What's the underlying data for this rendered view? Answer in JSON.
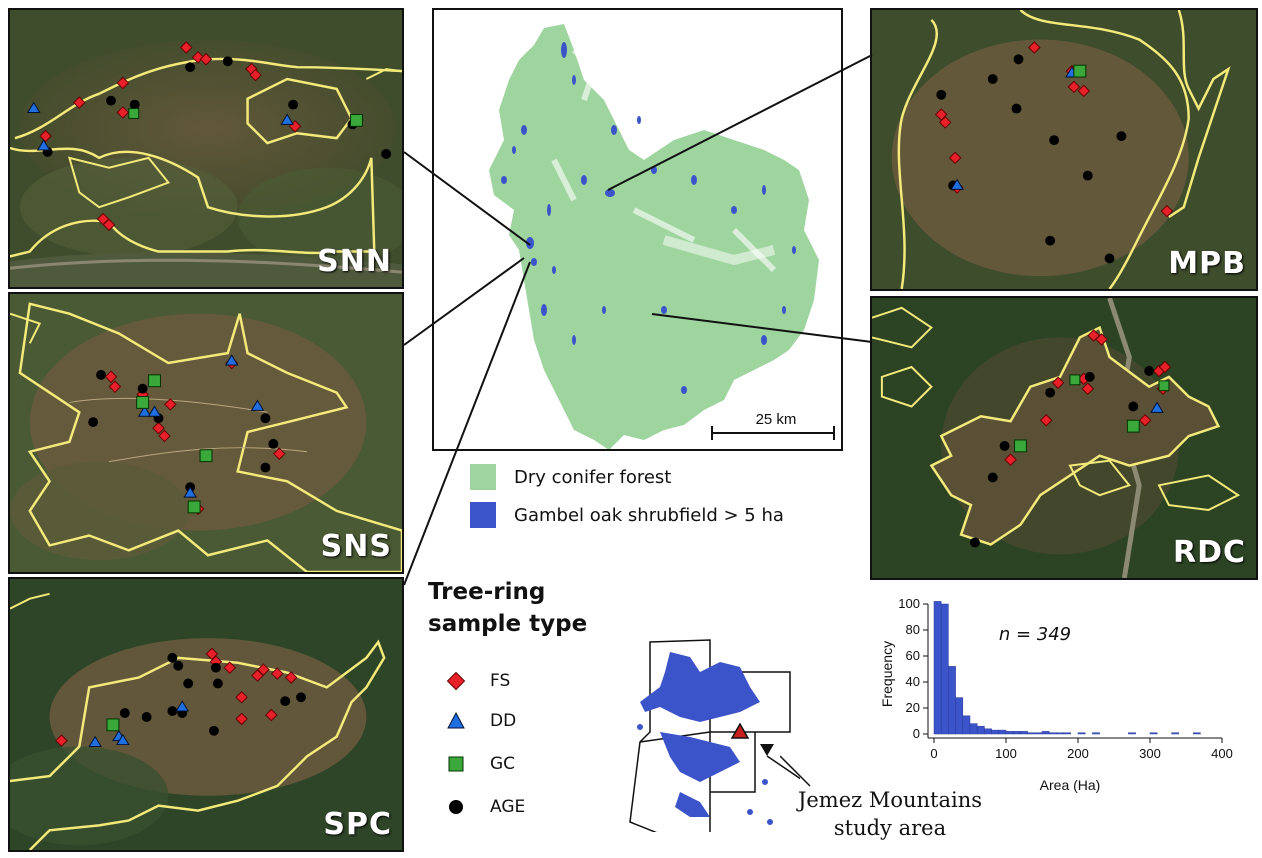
{
  "panels": {
    "snn": {
      "label": "SNN"
    },
    "sns": {
      "label": "SNS"
    },
    "spc": {
      "label": "SPC"
    },
    "mpb": {
      "label": "MPB"
    },
    "rdc": {
      "label": "RDC"
    }
  },
  "overview": {
    "scalebar_label": "25 km"
  },
  "legend": {
    "dry_conifer": {
      "label": "Dry conifer forest",
      "color": "#9ed49e"
    },
    "gambel_oak": {
      "label": "Gambel oak shrubfield > 5 ha",
      "color": "#3b54c9"
    }
  },
  "sample_legend": {
    "title_line1": "Tree-ring",
    "title_line2": "sample type",
    "items": [
      {
        "label": "FS",
        "shape": "diamond",
        "color": "#e8202a"
      },
      {
        "label": "DD",
        "shape": "triangle",
        "color": "#1f6fe0"
      },
      {
        "label": "GC",
        "shape": "square",
        "color": "#3aa83a"
      },
      {
        "label": "AGE",
        "shape": "circle",
        "color": "#000000"
      }
    ]
  },
  "locator": {
    "label_line1": "Jemez Mountains",
    "label_line2": "study area"
  },
  "chart_data": {
    "type": "bar",
    "annotation": "n = 349",
    "xlabel": "Area (Ha)",
    "ylabel": "Frequency",
    "xlim": [
      0,
      400
    ],
    "ylim": [
      0,
      100
    ],
    "xticks": [
      0,
      100,
      200,
      300,
      400
    ],
    "yticks": [
      0,
      20,
      40,
      60,
      80,
      100
    ],
    "bin_width": 10,
    "bin_starts": [
      0,
      10,
      20,
      30,
      40,
      50,
      60,
      70,
      80,
      90,
      100,
      110,
      120,
      130,
      140,
      150,
      160,
      170,
      180,
      190,
      200,
      210,
      220,
      230,
      240,
      250,
      260,
      270,
      280,
      290,
      300,
      310,
      320,
      330,
      340,
      350,
      360,
      370,
      380,
      390
    ],
    "values": [
      102,
      100,
      52,
      28,
      14,
      8,
      6,
      4,
      3,
      3,
      2,
      2,
      2,
      1,
      1,
      2,
      1,
      1,
      1,
      0,
      1,
      0,
      1,
      0,
      0,
      0,
      0,
      1,
      0,
      0,
      1,
      0,
      0,
      1,
      0,
      0,
      1,
      0,
      0,
      0
    ],
    "bar_color": "#3b54c9"
  }
}
